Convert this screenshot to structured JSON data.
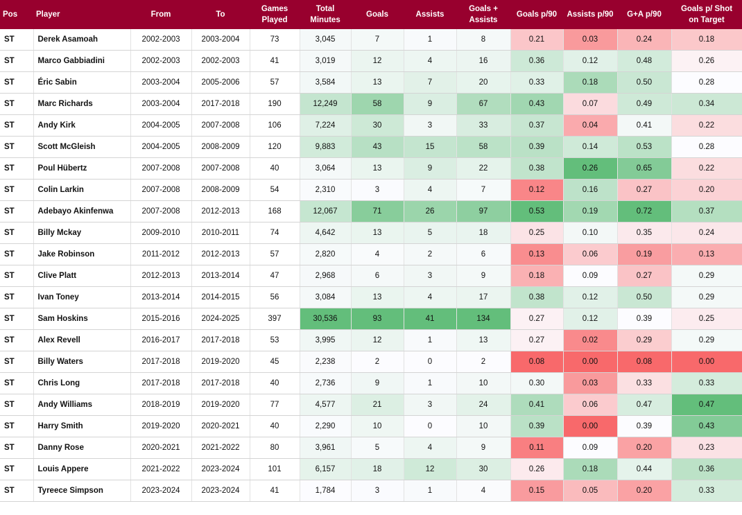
{
  "headers": {
    "pos": "Pos",
    "player": "Player",
    "from": "From",
    "to": "To",
    "games": [
      "Games",
      "Played"
    ],
    "minutes": [
      "Total",
      "Minutes"
    ],
    "goals": "Goals",
    "assists": "Assists",
    "ga": [
      "Goals +",
      "Assists"
    ],
    "gp90": "Goals p/90",
    "ap90": "Assists p/90",
    "gap90": "G+A p/90",
    "gpsot": [
      "Goals p/ Shot",
      "on Target"
    ]
  },
  "colors": {
    "header_bg": "#98002e",
    "header_text": "#ffffff",
    "scale_low": "#f8696b",
    "scale_mid": "#fcfcff",
    "scale_high": "#63be7b"
  },
  "rows": [
    {
      "pos": "ST",
      "player": "Derek Asamoah",
      "from": "2002-2003",
      "to": "2003-2004",
      "games": "73",
      "minutes": "3,045",
      "goals": "7",
      "assists": "1",
      "ga": "8",
      "gp90": "0.21",
      "ap90": "0.03",
      "gap90": "0.24",
      "gpsot": "0.18"
    },
    {
      "pos": "ST",
      "player": "Marco Gabbiadini",
      "from": "2002-2003",
      "to": "2002-2003",
      "games": "41",
      "minutes": "3,019",
      "goals": "12",
      "assists": "4",
      "ga": "16",
      "gp90": "0.36",
      "ap90": "0.12",
      "gap90": "0.48",
      "gpsot": "0.26"
    },
    {
      "pos": "ST",
      "player": "Éric Sabin",
      "from": "2003-2004",
      "to": "2005-2006",
      "games": "57",
      "minutes": "3,584",
      "goals": "13",
      "assists": "7",
      "ga": "20",
      "gp90": "0.33",
      "ap90": "0.18",
      "gap90": "0.50",
      "gpsot": "0.28"
    },
    {
      "pos": "ST",
      "player": "Marc Richards",
      "from": "2003-2004",
      "to": "2017-2018",
      "games": "190",
      "minutes": "12,249",
      "goals": "58",
      "assists": "9",
      "ga": "67",
      "gp90": "0.43",
      "ap90": "0.07",
      "gap90": "0.49",
      "gpsot": "0.34"
    },
    {
      "pos": "ST",
      "player": "Andy Kirk",
      "from": "2004-2005",
      "to": "2007-2008",
      "games": "106",
      "minutes": "7,224",
      "goals": "30",
      "assists": "3",
      "ga": "33",
      "gp90": "0.37",
      "ap90": "0.04",
      "gap90": "0.41",
      "gpsot": "0.22"
    },
    {
      "pos": "ST",
      "player": "Scott McGleish",
      "from": "2004-2005",
      "to": "2008-2009",
      "games": "120",
      "minutes": "9,883",
      "goals": "43",
      "assists": "15",
      "ga": "58",
      "gp90": "0.39",
      "ap90": "0.14",
      "gap90": "0.53",
      "gpsot": "0.28"
    },
    {
      "pos": "ST",
      "player": "Poul Hübertz",
      "from": "2007-2008",
      "to": "2007-2008",
      "games": "40",
      "minutes": "3,064",
      "goals": "13",
      "assists": "9",
      "ga": "22",
      "gp90": "0.38",
      "ap90": "0.26",
      "gap90": "0.65",
      "gpsot": "0.22"
    },
    {
      "pos": "ST",
      "player": "Colin Larkin",
      "from": "2007-2008",
      "to": "2008-2009",
      "games": "54",
      "minutes": "2,310",
      "goals": "3",
      "assists": "4",
      "ga": "7",
      "gp90": "0.12",
      "ap90": "0.16",
      "gap90": "0.27",
      "gpsot": "0.20"
    },
    {
      "pos": "ST",
      "player": "Adebayo Akinfenwa",
      "from": "2007-2008",
      "to": "2012-2013",
      "games": "168",
      "minutes": "12,067",
      "goals": "71",
      "assists": "26",
      "ga": "97",
      "gp90": "0.53",
      "ap90": "0.19",
      "gap90": "0.72",
      "gpsot": "0.37"
    },
    {
      "pos": "ST",
      "player": "Billy Mckay",
      "from": "2009-2010",
      "to": "2010-2011",
      "games": "74",
      "minutes": "4,642",
      "goals": "13",
      "assists": "5",
      "ga": "18",
      "gp90": "0.25",
      "ap90": "0.10",
      "gap90": "0.35",
      "gpsot": "0.24"
    },
    {
      "pos": "ST",
      "player": "Jake Robinson",
      "from": "2011-2012",
      "to": "2012-2013",
      "games": "57",
      "minutes": "2,820",
      "goals": "4",
      "assists": "2",
      "ga": "6",
      "gp90": "0.13",
      "ap90": "0.06",
      "gap90": "0.19",
      "gpsot": "0.13"
    },
    {
      "pos": "ST",
      "player": "Clive Platt",
      "from": "2012-2013",
      "to": "2013-2014",
      "games": "47",
      "minutes": "2,968",
      "goals": "6",
      "assists": "3",
      "ga": "9",
      "gp90": "0.18",
      "ap90": "0.09",
      "gap90": "0.27",
      "gpsot": "0.29"
    },
    {
      "pos": "ST",
      "player": "Ivan Toney",
      "from": "2013-2014",
      "to": "2014-2015",
      "games": "56",
      "minutes": "3,084",
      "goals": "13",
      "assists": "4",
      "ga": "17",
      "gp90": "0.38",
      "ap90": "0.12",
      "gap90": "0.50",
      "gpsot": "0.29"
    },
    {
      "pos": "ST",
      "player": "Sam Hoskins",
      "from": "2015-2016",
      "to": "2024-2025",
      "games": "397",
      "minutes": "30,536",
      "goals": "93",
      "assists": "41",
      "ga": "134",
      "gp90": "0.27",
      "ap90": "0.12",
      "gap90": "0.39",
      "gpsot": "0.25"
    },
    {
      "pos": "ST",
      "player": "Alex Revell",
      "from": "2016-2017",
      "to": "2017-2018",
      "games": "53",
      "minutes": "3,995",
      "goals": "12",
      "assists": "1",
      "ga": "13",
      "gp90": "0.27",
      "ap90": "0.02",
      "gap90": "0.29",
      "gpsot": "0.29"
    },
    {
      "pos": "ST",
      "player": "Billy Waters",
      "from": "2017-2018",
      "to": "2019-2020",
      "games": "45",
      "minutes": "2,238",
      "goals": "2",
      "assists": "0",
      "ga": "2",
      "gp90": "0.08",
      "ap90": "0.00",
      "gap90": "0.08",
      "gpsot": "0.00"
    },
    {
      "pos": "ST",
      "player": "Chris Long",
      "from": "2017-2018",
      "to": "2017-2018",
      "games": "40",
      "minutes": "2,736",
      "goals": "9",
      "assists": "1",
      "ga": "10",
      "gp90": "0.30",
      "ap90": "0.03",
      "gap90": "0.33",
      "gpsot": "0.33"
    },
    {
      "pos": "ST",
      "player": "Andy Williams",
      "from": "2018-2019",
      "to": "2019-2020",
      "games": "77",
      "minutes": "4,577",
      "goals": "21",
      "assists": "3",
      "ga": "24",
      "gp90": "0.41",
      "ap90": "0.06",
      "gap90": "0.47",
      "gpsot": "0.47"
    },
    {
      "pos": "ST",
      "player": "Harry Smith",
      "from": "2019-2020",
      "to": "2020-2021",
      "games": "40",
      "minutes": "2,290",
      "goals": "10",
      "assists": "0",
      "ga": "10",
      "gp90": "0.39",
      "ap90": "0.00",
      "gap90": "0.39",
      "gpsot": "0.43"
    },
    {
      "pos": "ST",
      "player": "Danny Rose",
      "from": "2020-2021",
      "to": "2021-2022",
      "games": "80",
      "minutes": "3,961",
      "goals": "5",
      "assists": "4",
      "ga": "9",
      "gp90": "0.11",
      "ap90": "0.09",
      "gap90": "0.20",
      "gpsot": "0.23"
    },
    {
      "pos": "ST",
      "player": "Louis Appere",
      "from": "2021-2022",
      "to": "2023-2024",
      "games": "101",
      "minutes": "6,157",
      "goals": "18",
      "assists": "12",
      "ga": "30",
      "gp90": "0.26",
      "ap90": "0.18",
      "gap90": "0.44",
      "gpsot": "0.36"
    },
    {
      "pos": "ST",
      "player": "Tyreece Simpson",
      "from": "2023-2024",
      "to": "2023-2024",
      "games": "41",
      "minutes": "1,784",
      "goals": "3",
      "assists": "1",
      "ga": "4",
      "gp90": "0.15",
      "ap90": "0.05",
      "gap90": "0.20",
      "gpsot": "0.33"
    }
  ]
}
